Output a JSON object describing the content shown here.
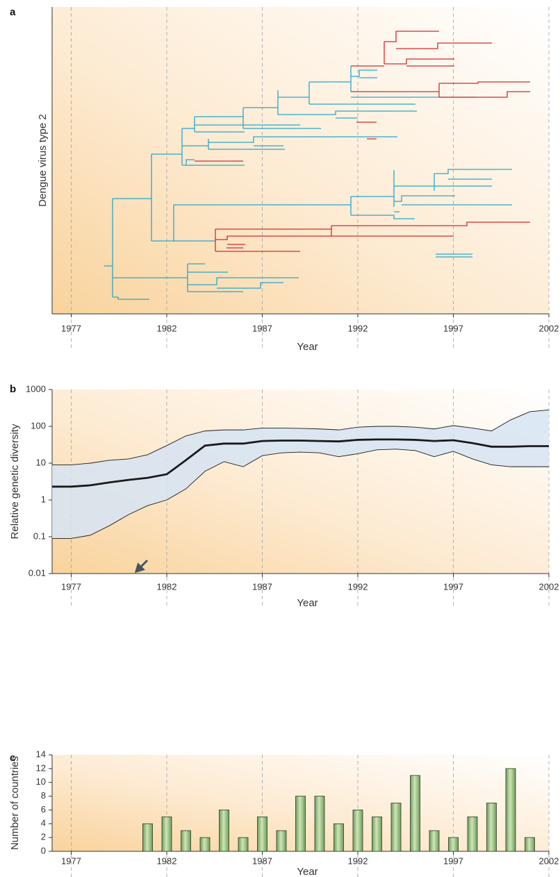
{
  "chart_data": [
    {
      "type": "tree",
      "label": "a",
      "ylabel": "Dengue virus type 2",
      "xlabel": "Year",
      "xlim": [
        1976,
        2002
      ],
      "xticks": [
        1977,
        1982,
        1987,
        1992,
        1997,
        2002
      ],
      "grid": true
    },
    {
      "type": "line",
      "label": "b",
      "ylabel": "Relative genetic diversity",
      "xlabel": "Year",
      "log_y": true,
      "x": [
        1976,
        1977,
        1978,
        1979,
        1980,
        1981,
        1982,
        1983,
        1984,
        1985,
        1986,
        1987,
        1988,
        1989,
        1990,
        1991,
        1992,
        1993,
        1994,
        1995,
        1996,
        1997,
        1998,
        1999,
        2000,
        2001,
        2002
      ],
      "values": [
        2.3,
        2.3,
        2.5,
        3,
        3.5,
        4,
        5,
        12,
        30,
        34,
        34,
        40,
        41,
        41,
        40,
        39,
        43,
        44,
        44,
        43,
        40,
        42,
        35,
        28,
        28,
        29,
        29
      ],
      "lower": [
        0.09,
        0.09,
        0.11,
        0.2,
        0.4,
        0.7,
        1,
        2,
        6,
        11,
        8,
        16,
        19,
        20,
        19,
        15,
        18,
        23,
        24,
        22,
        15,
        21,
        13,
        9,
        8,
        8,
        8
      ],
      "upper": [
        9,
        9,
        10,
        12,
        13,
        17,
        30,
        55,
        75,
        80,
        80,
        90,
        90,
        88,
        85,
        80,
        95,
        100,
        100,
        95,
        85,
        105,
        90,
        75,
        150,
        250,
        280
      ],
      "color": "#1a1a1a",
      "band_color": "#d6e4f3",
      "xlim": [
        1976,
        2002
      ],
      "xticks": [
        1977,
        1982,
        1987,
        1992,
        1997,
        2002
      ],
      "ylim": [
        0.01,
        1000
      ],
      "yticks": [
        0.01,
        0.1,
        1,
        10,
        100,
        1000
      ],
      "grid": true
    },
    {
      "type": "bar",
      "label": "c",
      "ylabel": "Number of countries",
      "xlabel": "Year",
      "x": [
        1981,
        1982,
        1983,
        1984,
        1985,
        1986,
        1987,
        1988,
        1989,
        1990,
        1991,
        1992,
        1993,
        1994,
        1995,
        1996,
        1997,
        1998,
        1999,
        2000,
        2001
      ],
      "values": [
        4,
        5,
        3,
        2,
        6,
        2,
        5,
        3,
        8,
        8,
        4,
        6,
        5,
        7,
        11,
        3,
        2,
        5,
        7,
        12,
        2
      ],
      "color": "#9fcb85",
      "xlim": [
        1976,
        2002
      ],
      "xticks": [
        1977,
        1982,
        1987,
        1992,
        1997,
        2002
      ],
      "ylim": [
        0,
        14
      ],
      "yticks": [
        0,
        2,
        4,
        6,
        8,
        10,
        12,
        14
      ],
      "grid": true
    }
  ]
}
